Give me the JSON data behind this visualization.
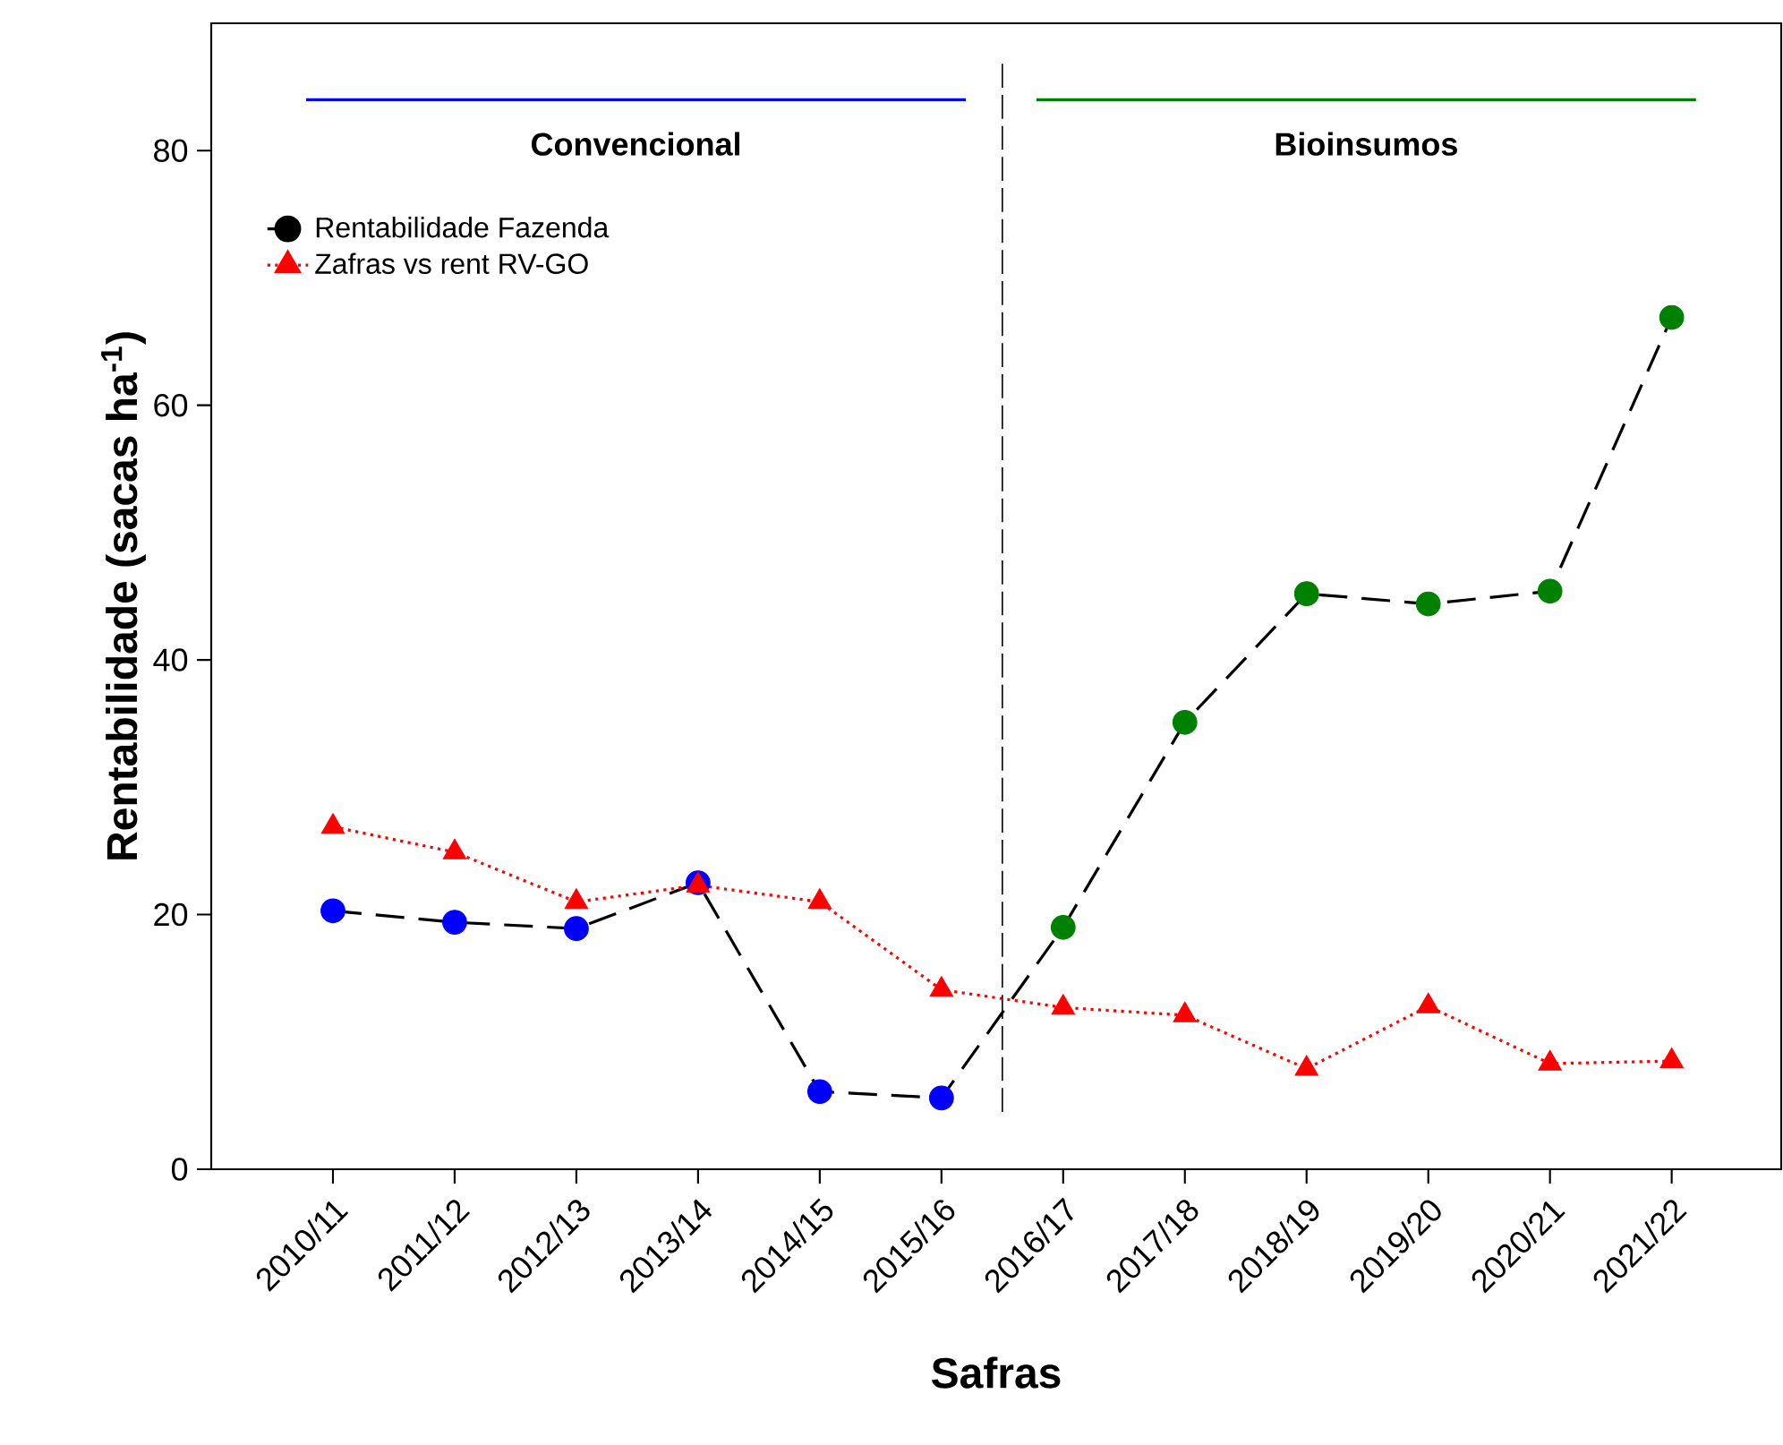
{
  "chart_data": {
    "type": "line",
    "xlabel": "Safras",
    "ylabel": "Rentabilidade (sacas ha$^{-1}$)",
    "categories": [
      "2010/11",
      "2011/12",
      "2012/13",
      "2013/14",
      "2014/15",
      "2015/16",
      "2016/17",
      "2017/18",
      "2018/19",
      "2019/20",
      "2020/21",
      "2021/22"
    ],
    "series": [
      {
        "name": "Rentabilidade Fazenda",
        "color": "#000000",
        "colors": [
          "#0000ff",
          "#0000ff",
          "#0000ff",
          "#0000ff",
          "#0000ff",
          "#0000ff",
          "#008000",
          "#008000",
          "#008000",
          "#008000",
          "#008000",
          "#008000"
        ],
        "marker": "circle",
        "line_style": "dashed",
        "values": [
          20.3,
          19.4,
          18.9,
          22.5,
          6.1,
          5.6,
          19.0,
          35.1,
          45.2,
          44.4,
          45.4,
          66.9
        ]
      },
      {
        "name": "Zafras vs rent RV-GO",
        "color": "#ff0000",
        "marker": "triangle",
        "line_style": "dotted",
        "values": [
          26.9,
          24.9,
          21.0,
          22.3,
          21.0,
          14.1,
          12.7,
          12.1,
          7.9,
          12.8,
          8.3,
          8.5
        ]
      }
    ],
    "ylim": [
      0,
      90
    ],
    "yticks": [
      0,
      20,
      40,
      60,
      80
    ],
    "grid": false,
    "legend": "top left",
    "ref_lines": [
      {
        "axis": "y",
        "value": 84,
        "label": "Convencional",
        "color": "#0000ff"
      },
      {
        "axis": "y",
        "value": 84,
        "label": "Bioinsumos",
        "color": "#008000"
      }
    ]
  }
}
